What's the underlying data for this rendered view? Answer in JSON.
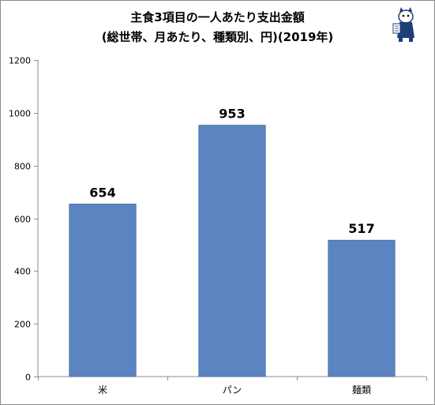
{
  "chart_data": {
    "type": "bar",
    "title_lines": [
      "主食3項目の一人あたり支出金額",
      "(総世帯、月あたり、種類別、円)(2019年)"
    ],
    "categories": [
      "米",
      "パン",
      "麺類"
    ],
    "values": [
      654,
      953,
      517
    ],
    "data_labels": [
      "654",
      "953",
      "517"
    ],
    "xlabel": "",
    "ylabel": "",
    "ylim": [
      0,
      1200
    ],
    "yticks": [
      0,
      200,
      400,
      600,
      800,
      1000,
      1200
    ],
    "ytick_labels": [
      "0",
      "200",
      "400",
      "600",
      "800",
      "1000",
      "1200"
    ],
    "grid": false,
    "legend": "none",
    "colors": {
      "bar": "#5b84c0",
      "bar_edge": "#4a70a8",
      "axis": "#8c8c8c",
      "text": "#000000"
    }
  }
}
